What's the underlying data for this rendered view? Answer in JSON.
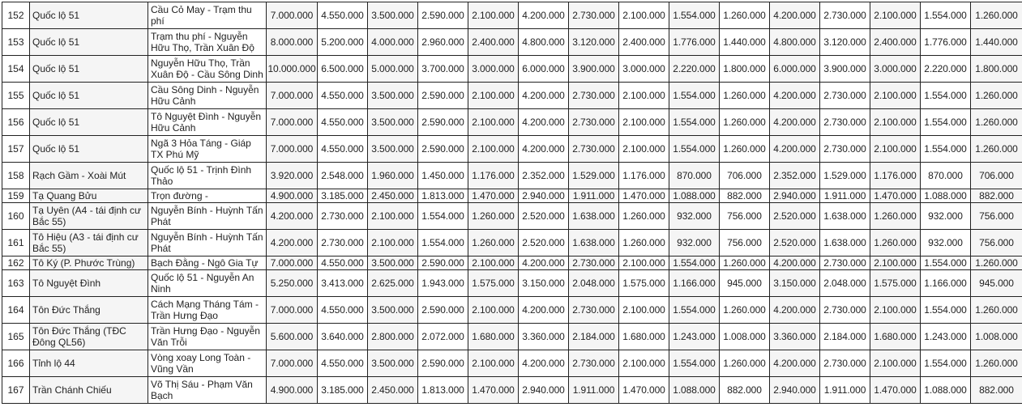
{
  "rows": [
    {
      "no": "152",
      "street": "Quốc lộ 51",
      "segment": "Cầu Cỏ May - Trạm thu phí",
      "prices": [
        "7.000.000",
        "4.550.000",
        "3.500.000",
        "2.590.000",
        "2.100.000",
        "4.200.000",
        "2.730.000",
        "2.100.000",
        "1.554.000",
        "1.260.000",
        "4.200.000",
        "2.730.000",
        "2.100.000",
        "1.554.000",
        "1.260.000"
      ]
    },
    {
      "no": "153",
      "street": "Quốc lộ 51",
      "segment": "Trạm thu phí - Nguyễn Hữu Thọ, Trần Xuân Độ",
      "prices": [
        "8.000.000",
        "5.200.000",
        "4.000.000",
        "2.960.000",
        "2.400.000",
        "4.800.000",
        "3.120.000",
        "2.400.000",
        "1.776.000",
        "1.440.000",
        "4.800.000",
        "3.120.000",
        "2.400.000",
        "1.776.000",
        "1.440.000"
      ]
    },
    {
      "no": "154",
      "street": "Quốc lộ 51",
      "segment": "Nguyễn Hữu Thọ, Trần Xuân Độ - Cầu Sông Dinh",
      "prices": [
        "10.000.000",
        "6.500.000",
        "5.000.000",
        "3.700.000",
        "3.000.000",
        "6.000.000",
        "3.900.000",
        "3.000.000",
        "2.220.000",
        "1.800.000",
        "6.000.000",
        "3.900.000",
        "3.000.000",
        "2.220.000",
        "1.800.000"
      ]
    },
    {
      "no": "155",
      "street": "Quốc lộ 51",
      "segment": "Cầu Sông Dinh - Nguyễn Hữu Cảnh",
      "prices": [
        "7.000.000",
        "4.550.000",
        "3.500.000",
        "2.590.000",
        "2.100.000",
        "4.200.000",
        "2.730.000",
        "2.100.000",
        "1.554.000",
        "1.260.000",
        "4.200.000",
        "2.730.000",
        "2.100.000",
        "1.554.000",
        "1.260.000"
      ]
    },
    {
      "no": "156",
      "street": "Quốc lộ 51",
      "segment": "Tô Nguyệt Đình - Nguyễn Hữu Cảnh",
      "prices": [
        "7.000.000",
        "4.550.000",
        "3.500.000",
        "2.590.000",
        "2.100.000",
        "4.200.000",
        "2.730.000",
        "2.100.000",
        "1.554.000",
        "1.260.000",
        "4.200.000",
        "2.730.000",
        "2.100.000",
        "1.554.000",
        "1.260.000"
      ]
    },
    {
      "no": "157",
      "street": "Quốc lộ 51",
      "segment": "Ngã 3 Hỏa Táng - Giáp TX Phú Mỹ",
      "prices": [
        "7.000.000",
        "4.550.000",
        "3.500.000",
        "2.590.000",
        "2.100.000",
        "4.200.000",
        "2.730.000",
        "2.100.000",
        "1.554.000",
        "1.260.000",
        "4.200.000",
        "2.730.000",
        "2.100.000",
        "1.554.000",
        "1.260.000"
      ]
    },
    {
      "no": "158",
      "street": "Rạch Gầm - Xoài Mút",
      "segment": "Quốc lộ 51 - Trịnh Đình Thảo",
      "prices": [
        "3.920.000",
        "2.548.000",
        "1.960.000",
        "1.450.000",
        "1.176.000",
        "2.352.000",
        "1.529.000",
        "1.176.000",
        "870.000",
        "706.000",
        "2.352.000",
        "1.529.000",
        "1.176.000",
        "870.000",
        "706.000"
      ]
    },
    {
      "no": "159",
      "street": "Tạ Quang Bửu",
      "segment": "Trọn đường -",
      "prices": [
        "4.900.000",
        "3.185.000",
        "2.450.000",
        "1.813.000",
        "1.470.000",
        "2.940.000",
        "1.911.000",
        "1.470.000",
        "1.088.000",
        "882.000",
        "2.940.000",
        "1.911.000",
        "1.470.000",
        "1.088.000",
        "882.000"
      ]
    },
    {
      "no": "160",
      "street": "Tạ Uyên (A4 - tái định cư Bắc 55)",
      "segment": "Nguyễn Bính - Huỳnh Tấn Phát",
      "prices": [
        "4.200.000",
        "2.730.000",
        "2.100.000",
        "1.554.000",
        "1.260.000",
        "2.520.000",
        "1.638.000",
        "1.260.000",
        "932.000",
        "756.000",
        "2.520.000",
        "1.638.000",
        "1.260.000",
        "932.000",
        "756.000"
      ]
    },
    {
      "no": "161",
      "street": "Tô Hiệu (A3 - tái định cư Bắc 55)",
      "segment": "Nguyễn Bính - Huỳnh Tấn Phát",
      "prices": [
        "4.200.000",
        "2.730.000",
        "2.100.000",
        "1.554.000",
        "1.260.000",
        "2.520.000",
        "1.638.000",
        "1.260.000",
        "932.000",
        "756.000",
        "2.520.000",
        "1.638.000",
        "1.260.000",
        "932.000",
        "756.000"
      ]
    },
    {
      "no": "162",
      "street": "Tô Ký (P. Phước Trùng)",
      "segment": "Bạch Đằng - Ngô Gia Tự",
      "prices": [
        "7.000.000",
        "4.550.000",
        "3.500.000",
        "2.590.000",
        "2.100.000",
        "4.200.000",
        "2.730.000",
        "2.100.000",
        "1.554.000",
        "1.260.000",
        "4.200.000",
        "2.730.000",
        "2.100.000",
        "1.554.000",
        "1.260.000"
      ]
    },
    {
      "no": "163",
      "street": "Tô Nguyệt Đình",
      "segment": "Quốc lộ 51 - Nguyễn An Ninh",
      "prices": [
        "5.250.000",
        "3.413.000",
        "2.625.000",
        "1.943.000",
        "1.575.000",
        "3.150.000",
        "2.048.000",
        "1.575.000",
        "1.166.000",
        "945.000",
        "3.150.000",
        "2.048.000",
        "1.575.000",
        "1.166.000",
        "945.000"
      ]
    },
    {
      "no": "164",
      "street": "Tôn Đức Thắng",
      "segment": "Cách Mạng Tháng Tám - Trần Hưng Đạo",
      "prices": [
        "7.000.000",
        "4.550.000",
        "3.500.000",
        "2.590.000",
        "2.100.000",
        "4.200.000",
        "2.730.000",
        "2.100.000",
        "1.554.000",
        "1.260.000",
        "4.200.000",
        "2.730.000",
        "2.100.000",
        "1.554.000",
        "1.260.000"
      ]
    },
    {
      "no": "165",
      "street": "Tôn Đức Thắng (TĐC Đông QL56)",
      "segment": "Trần Hưng Đạo - Nguyễn Văn Trỗi",
      "prices": [
        "5.600.000",
        "3.640.000",
        "2.800.000",
        "2.072.000",
        "1.680.000",
        "3.360.000",
        "2.184.000",
        "1.680.000",
        "1.243.000",
        "1.008.000",
        "3.360.000",
        "2.184.000",
        "1.680.000",
        "1.243.000",
        "1.008.000"
      ]
    },
    {
      "no": "166",
      "street": "Tỉnh lộ 44",
      "segment": "Vòng xoay Long Toàn - Vũng Vần",
      "prices": [
        "7.000.000",
        "4.550.000",
        "3.500.000",
        "2.590.000",
        "2.100.000",
        "4.200.000",
        "2.730.000",
        "2.100.000",
        "1.554.000",
        "1.260.000",
        "4.200.000",
        "2.730.000",
        "2.100.000",
        "1.554.000",
        "1.260.000"
      ]
    },
    {
      "no": "167",
      "street": "Trần Chánh Chiếu",
      "segment": "Võ Thị Sáu - Phạm Văn Bạch",
      "prices": [
        "4.900.000",
        "3.185.000",
        "2.450.000",
        "1.813.000",
        "1.470.000",
        "2.940.000",
        "1.911.000",
        "1.470.000",
        "1.088.000",
        "882.000",
        "2.940.000",
        "1.911.000",
        "1.470.000",
        "1.088.000",
        "882.000"
      ]
    }
  ]
}
